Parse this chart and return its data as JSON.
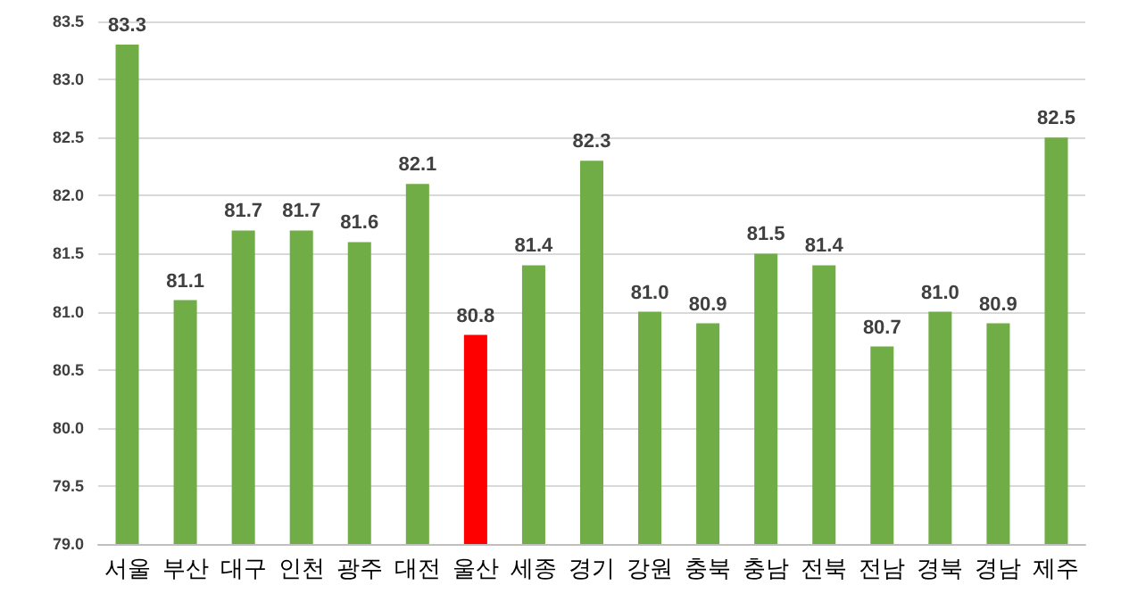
{
  "chart_data": {
    "type": "bar",
    "categories": [
      "서울",
      "부산",
      "대구",
      "인천",
      "광주",
      "대전",
      "울산",
      "세종",
      "경기",
      "강원",
      "충북",
      "충남",
      "전북",
      "전남",
      "경북",
      "경남",
      "제주"
    ],
    "values": [
      83.3,
      81.1,
      81.7,
      81.7,
      81.6,
      82.1,
      80.8,
      81.4,
      82.3,
      81.0,
      80.9,
      81.5,
      81.4,
      80.7,
      81.0,
      80.9,
      82.5
    ],
    "colors": [
      "#70ad47",
      "#70ad47",
      "#70ad47",
      "#70ad47",
      "#70ad47",
      "#70ad47",
      "#ff0000",
      "#70ad47",
      "#70ad47",
      "#70ad47",
      "#70ad47",
      "#70ad47",
      "#70ad47",
      "#70ad47",
      "#70ad47",
      "#70ad47",
      "#70ad47"
    ],
    "value_labels": [
      "83.3",
      "81.1",
      "81.7",
      "81.7",
      "81.6",
      "82.1",
      "80.8",
      "81.4",
      "82.3",
      "81.0",
      "80.9",
      "81.5",
      "81.4",
      "80.7",
      "81.0",
      "80.9",
      "82.5"
    ],
    "ylim": [
      79.0,
      83.5
    ],
    "yticks": [
      {
        "value": 79,
        "label": "79.0"
      },
      {
        "value": 79.5,
        "label": "79.5"
      },
      {
        "value": 80,
        "label": "80.0"
      },
      {
        "value": 80.5,
        "label": "80.5"
      },
      {
        "value": 81,
        "label": "81.0"
      },
      {
        "value": 81.5,
        "label": "81.5"
      },
      {
        "value": 82,
        "label": "82.0"
      },
      {
        "value": 82.5,
        "label": "82.5"
      },
      {
        "value": 83,
        "label": "83.0"
      },
      {
        "value": 83.5,
        "label": "83.5"
      }
    ],
    "grid": "y"
  }
}
